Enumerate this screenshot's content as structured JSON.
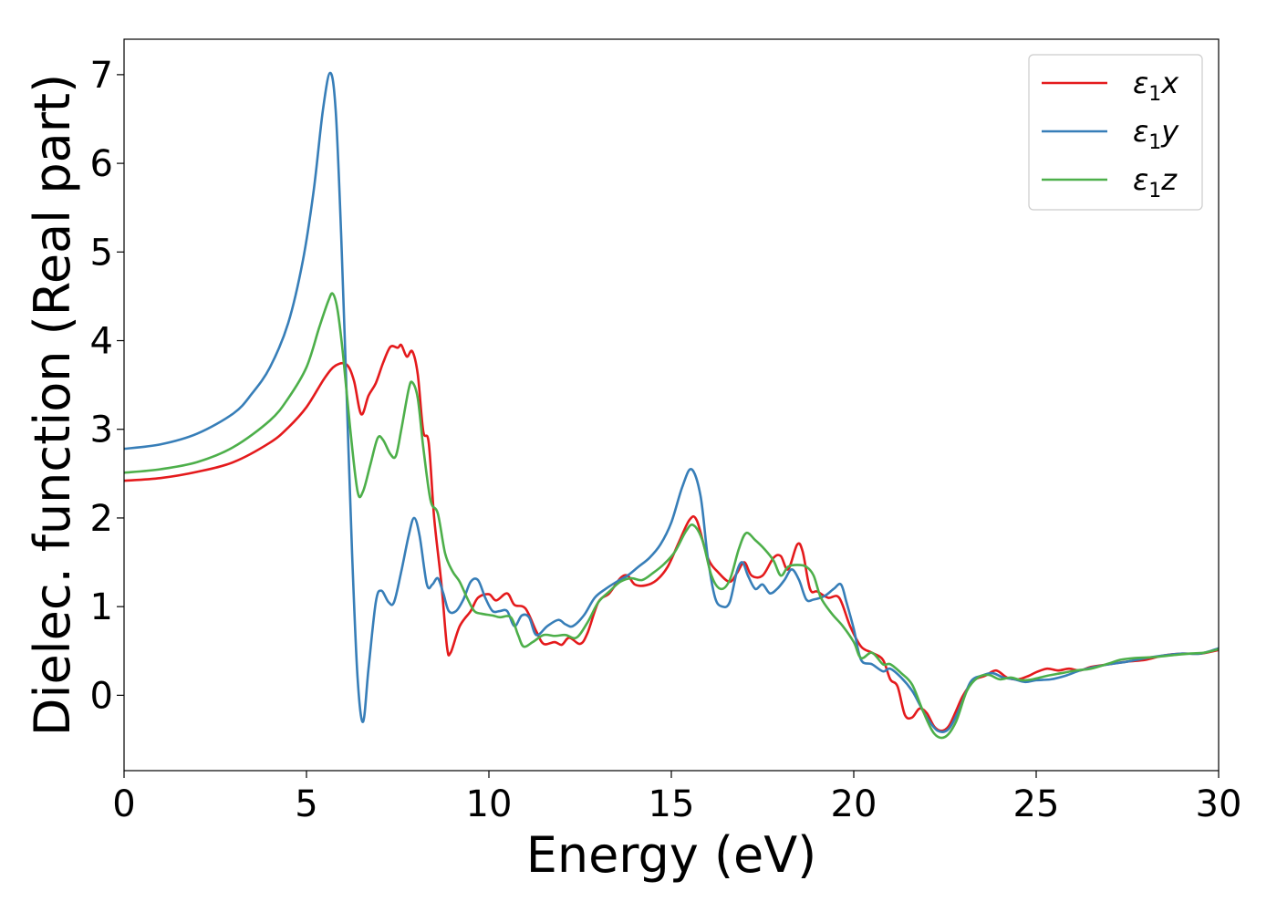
{
  "chart_data": {
    "type": "line",
    "xlabel": "Energy (eV)",
    "ylabel": "Dielec. function (Real part)",
    "xlim": [
      0,
      30
    ],
    "ylim": [
      -0.85,
      7.4
    ],
    "xticks": [
      0,
      5,
      10,
      15,
      20,
      25,
      30
    ],
    "yticks": [
      0,
      1,
      2,
      3,
      4,
      5,
      6,
      7
    ],
    "grid": false,
    "legend_position": "top-right",
    "series": [
      {
        "name": "ε1x",
        "legend": {
          "symbol": "ε",
          "sub": "1",
          "suffix": "x"
        },
        "color": "#e41a1c",
        "points": [
          [
            0,
            2.42
          ],
          [
            1,
            2.45
          ],
          [
            2,
            2.52
          ],
          [
            3,
            2.63
          ],
          [
            4,
            2.85
          ],
          [
            4.5,
            3.02
          ],
          [
            5,
            3.25
          ],
          [
            5.5,
            3.58
          ],
          [
            5.8,
            3.72
          ],
          [
            6.1,
            3.73
          ],
          [
            6.3,
            3.55
          ],
          [
            6.5,
            3.17
          ],
          [
            6.7,
            3.38
          ],
          [
            6.9,
            3.52
          ],
          [
            7.1,
            3.75
          ],
          [
            7.3,
            3.93
          ],
          [
            7.5,
            3.92
          ],
          [
            7.6,
            3.95
          ],
          [
            7.75,
            3.82
          ],
          [
            7.9,
            3.88
          ],
          [
            8.05,
            3.62
          ],
          [
            8.2,
            2.98
          ],
          [
            8.35,
            2.85
          ],
          [
            8.5,
            2.0
          ],
          [
            8.7,
            1.25
          ],
          [
            8.85,
            0.55
          ],
          [
            8.95,
            0.48
          ],
          [
            9.2,
            0.78
          ],
          [
            9.5,
            0.95
          ],
          [
            9.7,
            1.1
          ],
          [
            10.0,
            1.14
          ],
          [
            10.2,
            1.07
          ],
          [
            10.5,
            1.15
          ],
          [
            10.7,
            1.02
          ],
          [
            11.0,
            0.98
          ],
          [
            11.3,
            0.72
          ],
          [
            11.5,
            0.58
          ],
          [
            11.8,
            0.6
          ],
          [
            12.0,
            0.57
          ],
          [
            12.2,
            0.65
          ],
          [
            12.5,
            0.58
          ],
          [
            12.7,
            0.7
          ],
          [
            13.0,
            1.05
          ],
          [
            13.3,
            1.15
          ],
          [
            13.6,
            1.32
          ],
          [
            13.8,
            1.35
          ],
          [
            14.0,
            1.25
          ],
          [
            14.3,
            1.24
          ],
          [
            14.6,
            1.3
          ],
          [
            14.9,
            1.45
          ],
          [
            15.2,
            1.72
          ],
          [
            15.5,
            1.98
          ],
          [
            15.7,
            1.97
          ],
          [
            16.0,
            1.55
          ],
          [
            16.3,
            1.38
          ],
          [
            16.6,
            1.28
          ],
          [
            16.8,
            1.38
          ],
          [
            17.0,
            1.5
          ],
          [
            17.2,
            1.35
          ],
          [
            17.5,
            1.35
          ],
          [
            17.8,
            1.55
          ],
          [
            18.0,
            1.57
          ],
          [
            18.2,
            1.42
          ],
          [
            18.45,
            1.7
          ],
          [
            18.6,
            1.62
          ],
          [
            18.8,
            1.2
          ],
          [
            19.0,
            1.17
          ],
          [
            19.3,
            1.1
          ],
          [
            19.6,
            1.1
          ],
          [
            19.9,
            0.78
          ],
          [
            20.2,
            0.55
          ],
          [
            20.5,
            0.48
          ],
          [
            20.8,
            0.4
          ],
          [
            21.0,
            0.18
          ],
          [
            21.2,
            0.1
          ],
          [
            21.4,
            -0.22
          ],
          [
            21.6,
            -0.25
          ],
          [
            21.8,
            -0.15
          ],
          [
            22.0,
            -0.2
          ],
          [
            22.2,
            -0.35
          ],
          [
            22.4,
            -0.4
          ],
          [
            22.6,
            -0.35
          ],
          [
            22.8,
            -0.18
          ],
          [
            23.0,
            0.0
          ],
          [
            23.3,
            0.17
          ],
          [
            23.6,
            0.22
          ],
          [
            23.9,
            0.28
          ],
          [
            24.2,
            0.2
          ],
          [
            24.5,
            0.18
          ],
          [
            24.8,
            0.22
          ],
          [
            25.0,
            0.26
          ],
          [
            25.3,
            0.3
          ],
          [
            25.6,
            0.28
          ],
          [
            25.9,
            0.3
          ],
          [
            26.2,
            0.28
          ],
          [
            26.5,
            0.32
          ],
          [
            27.0,
            0.35
          ],
          [
            27.5,
            0.38
          ],
          [
            28.0,
            0.4
          ],
          [
            28.5,
            0.45
          ],
          [
            29.0,
            0.47
          ],
          [
            29.5,
            0.47
          ],
          [
            30.0,
            0.51
          ]
        ]
      },
      {
        "name": "ε1y",
        "legend": {
          "symbol": "ε",
          "sub": "1",
          "suffix": "y"
        },
        "color": "#377eb8",
        "points": [
          [
            0,
            2.78
          ],
          [
            1,
            2.83
          ],
          [
            2,
            2.95
          ],
          [
            3,
            3.18
          ],
          [
            3.5,
            3.4
          ],
          [
            4,
            3.7
          ],
          [
            4.5,
            4.2
          ],
          [
            4.9,
            4.9
          ],
          [
            5.2,
            5.7
          ],
          [
            5.45,
            6.6
          ],
          [
            5.65,
            7.02
          ],
          [
            5.8,
            6.6
          ],
          [
            5.95,
            5.2
          ],
          [
            6.1,
            3.4
          ],
          [
            6.25,
            1.6
          ],
          [
            6.4,
            0.2
          ],
          [
            6.55,
            -0.3
          ],
          [
            6.7,
            0.3
          ],
          [
            6.9,
            1.05
          ],
          [
            7.05,
            1.18
          ],
          [
            7.25,
            1.05
          ],
          [
            7.4,
            1.05
          ],
          [
            7.6,
            1.4
          ],
          [
            7.8,
            1.8
          ],
          [
            7.95,
            2.0
          ],
          [
            8.1,
            1.8
          ],
          [
            8.3,
            1.25
          ],
          [
            8.45,
            1.25
          ],
          [
            8.6,
            1.32
          ],
          [
            8.75,
            1.15
          ],
          [
            8.9,
            0.95
          ],
          [
            9.1,
            0.95
          ],
          [
            9.3,
            1.08
          ],
          [
            9.5,
            1.28
          ],
          [
            9.7,
            1.3
          ],
          [
            9.9,
            1.1
          ],
          [
            10.1,
            0.95
          ],
          [
            10.3,
            0.95
          ],
          [
            10.5,
            0.95
          ],
          [
            10.7,
            0.78
          ],
          [
            10.9,
            0.9
          ],
          [
            11.1,
            0.88
          ],
          [
            11.3,
            0.68
          ],
          [
            11.6,
            0.78
          ],
          [
            11.9,
            0.85
          ],
          [
            12.1,
            0.8
          ],
          [
            12.3,
            0.78
          ],
          [
            12.6,
            0.9
          ],
          [
            12.9,
            1.1
          ],
          [
            13.2,
            1.2
          ],
          [
            13.5,
            1.28
          ],
          [
            13.8,
            1.35
          ],
          [
            14.1,
            1.45
          ],
          [
            14.4,
            1.55
          ],
          [
            14.7,
            1.7
          ],
          [
            15.0,
            1.95
          ],
          [
            15.3,
            2.35
          ],
          [
            15.55,
            2.55
          ],
          [
            15.8,
            2.25
          ],
          [
            16.0,
            1.55
          ],
          [
            16.2,
            1.1
          ],
          [
            16.4,
            1.0
          ],
          [
            16.6,
            1.05
          ],
          [
            16.8,
            1.4
          ],
          [
            16.95,
            1.5
          ],
          [
            17.1,
            1.35
          ],
          [
            17.3,
            1.2
          ],
          [
            17.5,
            1.25
          ],
          [
            17.7,
            1.15
          ],
          [
            17.9,
            1.2
          ],
          [
            18.1,
            1.3
          ],
          [
            18.3,
            1.42
          ],
          [
            18.5,
            1.3
          ],
          [
            18.7,
            1.08
          ],
          [
            18.9,
            1.08
          ],
          [
            19.2,
            1.12
          ],
          [
            19.45,
            1.2
          ],
          [
            19.65,
            1.25
          ],
          [
            19.8,
            1.05
          ],
          [
            20.0,
            0.75
          ],
          [
            20.2,
            0.4
          ],
          [
            20.5,
            0.35
          ],
          [
            20.8,
            0.27
          ],
          [
            21.0,
            0.3
          ],
          [
            21.3,
            0.2
          ],
          [
            21.6,
            0.05
          ],
          [
            21.8,
            -0.1
          ],
          [
            22.0,
            -0.25
          ],
          [
            22.3,
            -0.4
          ],
          [
            22.6,
            -0.38
          ],
          [
            22.9,
            -0.15
          ],
          [
            23.2,
            0.15
          ],
          [
            23.5,
            0.22
          ],
          [
            23.8,
            0.25
          ],
          [
            24.1,
            0.2
          ],
          [
            24.4,
            0.18
          ],
          [
            24.7,
            0.15
          ],
          [
            25.0,
            0.17
          ],
          [
            25.4,
            0.18
          ],
          [
            25.8,
            0.22
          ],
          [
            26.2,
            0.28
          ],
          [
            26.6,
            0.32
          ],
          [
            27.0,
            0.35
          ],
          [
            27.5,
            0.38
          ],
          [
            28.0,
            0.42
          ],
          [
            28.5,
            0.45
          ],
          [
            29.0,
            0.47
          ],
          [
            29.5,
            0.47
          ],
          [
            30.0,
            0.53
          ]
        ]
      },
      {
        "name": "ε1z",
        "legend": {
          "symbol": "ε",
          "sub": "1",
          "suffix": "z"
        },
        "color": "#4daf4a",
        "points": [
          [
            0,
            2.51
          ],
          [
            1,
            2.55
          ],
          [
            2,
            2.63
          ],
          [
            3,
            2.8
          ],
          [
            4,
            3.1
          ],
          [
            4.5,
            3.35
          ],
          [
            5.0,
            3.7
          ],
          [
            5.35,
            4.15
          ],
          [
            5.6,
            4.45
          ],
          [
            5.72,
            4.53
          ],
          [
            5.85,
            4.35
          ],
          [
            6.0,
            3.85
          ],
          [
            6.2,
            3.0
          ],
          [
            6.4,
            2.3
          ],
          [
            6.55,
            2.3
          ],
          [
            6.75,
            2.6
          ],
          [
            6.95,
            2.9
          ],
          [
            7.1,
            2.88
          ],
          [
            7.3,
            2.72
          ],
          [
            7.45,
            2.7
          ],
          [
            7.6,
            3.0
          ],
          [
            7.8,
            3.45
          ],
          [
            7.9,
            3.53
          ],
          [
            8.05,
            3.35
          ],
          [
            8.2,
            2.8
          ],
          [
            8.4,
            2.2
          ],
          [
            8.6,
            2.05
          ],
          [
            8.8,
            1.6
          ],
          [
            9.0,
            1.4
          ],
          [
            9.2,
            1.28
          ],
          [
            9.4,
            1.1
          ],
          [
            9.6,
            0.95
          ],
          [
            9.8,
            0.92
          ],
          [
            10.1,
            0.9
          ],
          [
            10.3,
            0.88
          ],
          [
            10.6,
            0.88
          ],
          [
            10.8,
            0.68
          ],
          [
            10.95,
            0.55
          ],
          [
            11.2,
            0.6
          ],
          [
            11.5,
            0.68
          ],
          [
            11.8,
            0.67
          ],
          [
            12.1,
            0.68
          ],
          [
            12.4,
            0.65
          ],
          [
            12.7,
            0.82
          ],
          [
            13.0,
            1.05
          ],
          [
            13.3,
            1.17
          ],
          [
            13.6,
            1.28
          ],
          [
            13.9,
            1.32
          ],
          [
            14.2,
            1.3
          ],
          [
            14.5,
            1.38
          ],
          [
            14.8,
            1.48
          ],
          [
            15.1,
            1.62
          ],
          [
            15.4,
            1.85
          ],
          [
            15.6,
            1.92
          ],
          [
            15.85,
            1.75
          ],
          [
            16.1,
            1.35
          ],
          [
            16.35,
            1.2
          ],
          [
            16.6,
            1.3
          ],
          [
            16.85,
            1.65
          ],
          [
            17.05,
            1.83
          ],
          [
            17.3,
            1.75
          ],
          [
            17.55,
            1.65
          ],
          [
            17.8,
            1.52
          ],
          [
            18.0,
            1.35
          ],
          [
            18.2,
            1.45
          ],
          [
            18.45,
            1.47
          ],
          [
            18.7,
            1.45
          ],
          [
            18.9,
            1.35
          ],
          [
            19.1,
            1.1
          ],
          [
            19.4,
            0.92
          ],
          [
            19.7,
            0.78
          ],
          [
            20.0,
            0.6
          ],
          [
            20.2,
            0.42
          ],
          [
            20.5,
            0.48
          ],
          [
            20.8,
            0.35
          ],
          [
            21.0,
            0.35
          ],
          [
            21.3,
            0.25
          ],
          [
            21.6,
            0.12
          ],
          [
            21.9,
            -0.18
          ],
          [
            22.2,
            -0.43
          ],
          [
            22.5,
            -0.47
          ],
          [
            22.8,
            -0.3
          ],
          [
            23.1,
            0.05
          ],
          [
            23.4,
            0.2
          ],
          [
            23.7,
            0.23
          ],
          [
            24.0,
            0.18
          ],
          [
            24.3,
            0.2
          ],
          [
            24.6,
            0.17
          ],
          [
            24.9,
            0.18
          ],
          [
            25.3,
            0.22
          ],
          [
            25.7,
            0.25
          ],
          [
            26.1,
            0.28
          ],
          [
            26.5,
            0.3
          ],
          [
            27.0,
            0.36
          ],
          [
            27.3,
            0.4
          ],
          [
            27.7,
            0.42
          ],
          [
            28.2,
            0.43
          ],
          [
            28.7,
            0.45
          ],
          [
            29.2,
            0.47
          ],
          [
            29.6,
            0.48
          ],
          [
            30.0,
            0.52
          ]
        ]
      }
    ]
  }
}
